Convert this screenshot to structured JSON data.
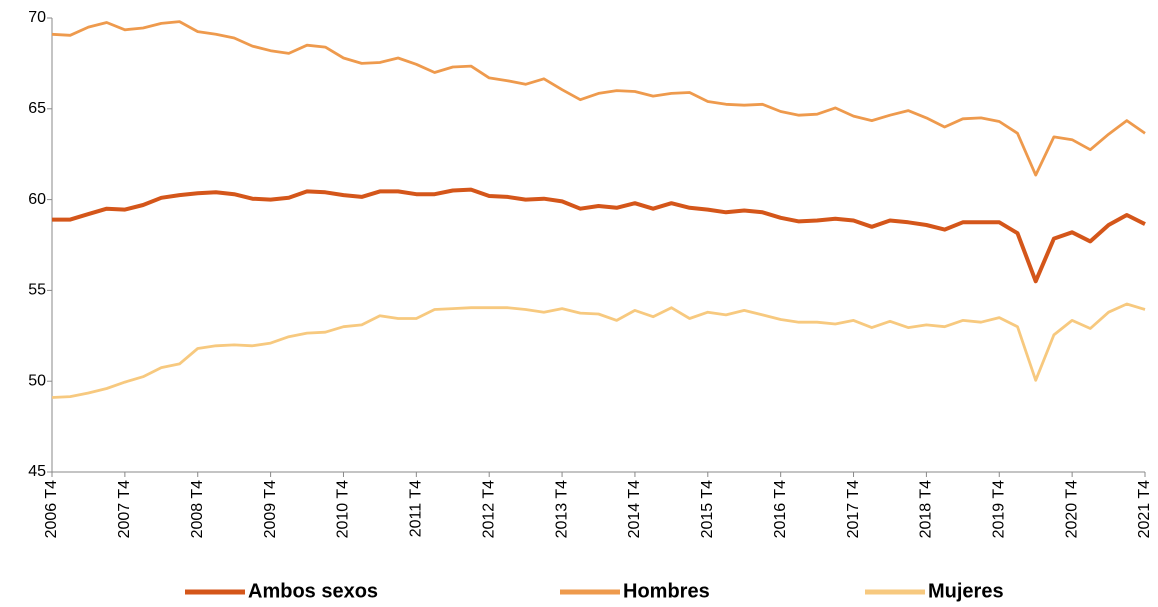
{
  "chart_data": {
    "type": "line",
    "categories": [
      "2006 T4",
      null,
      null,
      null,
      "2007 T4",
      null,
      null,
      null,
      "2008 T4",
      null,
      null,
      null,
      "2009 T4",
      null,
      null,
      null,
      "2010 T4",
      null,
      null,
      null,
      "2011 T4",
      null,
      null,
      null,
      "2012 T4",
      null,
      null,
      null,
      "2013 T4",
      null,
      null,
      null,
      "2014 T4",
      null,
      null,
      null,
      "2015 T4",
      null,
      null,
      null,
      "2016 T4",
      null,
      null,
      null,
      "2017 T4",
      null,
      null,
      null,
      "2018 T4",
      null,
      null,
      null,
      "2019 T4",
      null,
      null,
      null,
      "2020 T4",
      null,
      null,
      null,
      "2021 T4"
    ],
    "series": [
      {
        "name": "Ambos sexos",
        "color": "#d4561a",
        "values": [
          58.9,
          58.9,
          59.2,
          59.5,
          59.45,
          59.7,
          60.1,
          60.25,
          60.35,
          60.4,
          60.3,
          60.05,
          60.0,
          60.1,
          60.45,
          60.4,
          60.25,
          60.15,
          60.45,
          60.45,
          60.3,
          60.3,
          60.5,
          60.55,
          60.2,
          60.15,
          60.0,
          60.05,
          59.9,
          59.5,
          59.65,
          59.55,
          59.8,
          59.5,
          59.8,
          59.55,
          59.45,
          59.3,
          59.4,
          59.3,
          59.0,
          58.8,
          58.85,
          58.95,
          58.85,
          58.5,
          58.85,
          58.75,
          58.6,
          58.35,
          58.75,
          58.75,
          58.75,
          58.15,
          55.5,
          57.85,
          58.2,
          57.7,
          58.6,
          59.15,
          58.65
        ]
      },
      {
        "name": "Hombres",
        "color": "#ee9a4d",
        "values": [
          69.1,
          69.05,
          69.5,
          69.75,
          69.35,
          69.45,
          69.7,
          69.8,
          69.25,
          69.1,
          68.9,
          68.45,
          68.2,
          68.05,
          68.5,
          68.4,
          67.8,
          67.5,
          67.55,
          67.8,
          67.45,
          67.0,
          67.3,
          67.35,
          66.7,
          66.55,
          66.35,
          66.65,
          66.05,
          65.5,
          65.85,
          66.0,
          65.95,
          65.7,
          65.85,
          65.9,
          65.4,
          65.25,
          65.2,
          65.25,
          64.85,
          64.65,
          64.7,
          65.05,
          64.6,
          64.35,
          64.65,
          64.9,
          64.5,
          64.0,
          64.45,
          64.5,
          64.3,
          63.65,
          61.35,
          63.45,
          63.3,
          62.75,
          63.6,
          64.35,
          63.65
        ]
      },
      {
        "name": "Mujeres",
        "color": "#f7c97f",
        "values": [
          49.1,
          49.15,
          49.35,
          49.6,
          49.95,
          50.25,
          50.75,
          50.95,
          51.8,
          51.95,
          52.0,
          51.95,
          52.1,
          52.45,
          52.65,
          52.7,
          53.0,
          53.1,
          53.6,
          53.45,
          53.45,
          53.95,
          54.0,
          54.05,
          54.05,
          54.05,
          53.95,
          53.8,
          54.0,
          53.75,
          53.7,
          53.35,
          53.9,
          53.55,
          54.05,
          53.45,
          53.8,
          53.65,
          53.9,
          53.65,
          53.4,
          53.25,
          53.25,
          53.15,
          53.35,
          52.95,
          53.3,
          52.95,
          53.1,
          53.0,
          53.35,
          53.25,
          53.5,
          53.0,
          50.05,
          52.55,
          53.35,
          52.9,
          53.8,
          54.25,
          53.95
        ]
      }
    ],
    "ylim": [
      45,
      70
    ],
    "yticks": [
      45,
      50,
      55,
      60,
      65,
      70
    ],
    "grid": false,
    "legend": "bottom"
  }
}
